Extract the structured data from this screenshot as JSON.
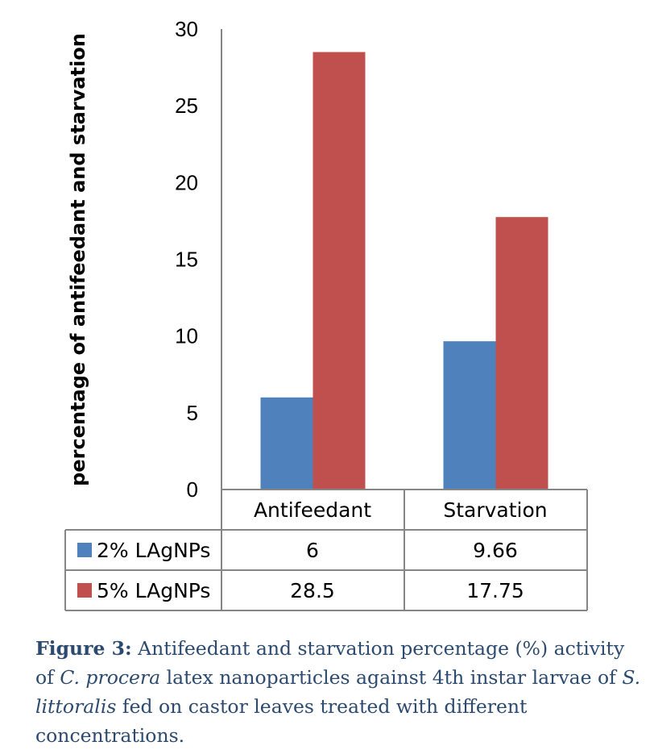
{
  "chart_data": {
    "type": "bar",
    "categories": [
      "Antifeedant",
      "Starvation"
    ],
    "series": [
      {
        "name": "2% LAgNPs",
        "values": [
          6,
          9.66
        ],
        "color": "#4f81bd"
      },
      {
        "name": "5% LAgNPs",
        "values": [
          28.5,
          17.75
        ],
        "color": "#c0504d"
      }
    ],
    "ylabel": "percentage of antifeedant and starvation",
    "ylim": [
      0,
      30
    ],
    "yticks": [
      0,
      5,
      10,
      15,
      20,
      25,
      30
    ],
    "grid": false,
    "legend": "data table below plot",
    "table_values": [
      [
        "6",
        "9.66"
      ],
      [
        "28.5",
        "17.75"
      ]
    ]
  },
  "caption": {
    "lead": "Figure 3:",
    "t1": " Antifeedant and starvation percentage (%) activity of ",
    "i1": "C. procera",
    "t2": " latex nanoparticles  against 4th instar larvae of ",
    "i2": "S. littoralis",
    "t3": " fed on castor leaves treated with different concentrations."
  }
}
